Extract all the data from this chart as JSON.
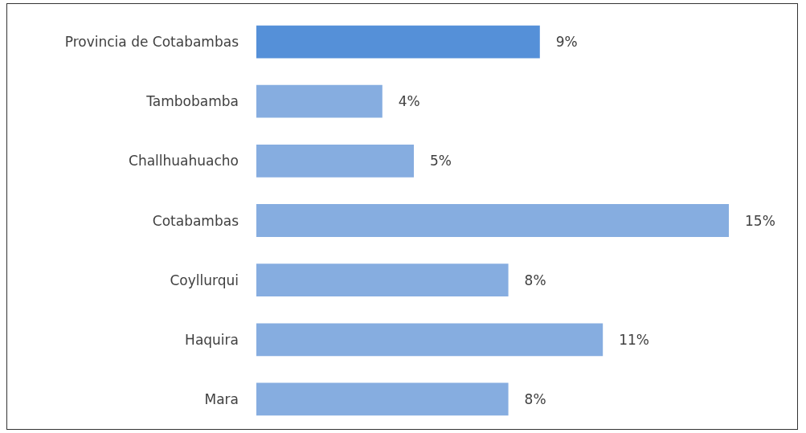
{
  "chart_data": {
    "type": "bar",
    "orientation": "horizontal",
    "categories": [
      "Provincia de Cotabambas",
      "Tambobamba",
      "Challhuahuacho",
      "Cotabambas",
      "Coyllurqui",
      "Haquira",
      "Mara"
    ],
    "values": [
      9,
      4,
      5,
      15,
      8,
      11,
      8
    ],
    "colors": [
      "#5590d8",
      "#86ade0",
      "#86ade0",
      "#86ade0",
      "#86ade0",
      "#86ade0",
      "#86ade0"
    ],
    "value_labels": [
      "9%",
      "4%",
      "5%",
      "15%",
      "8%",
      "11%",
      "8%"
    ]
  }
}
